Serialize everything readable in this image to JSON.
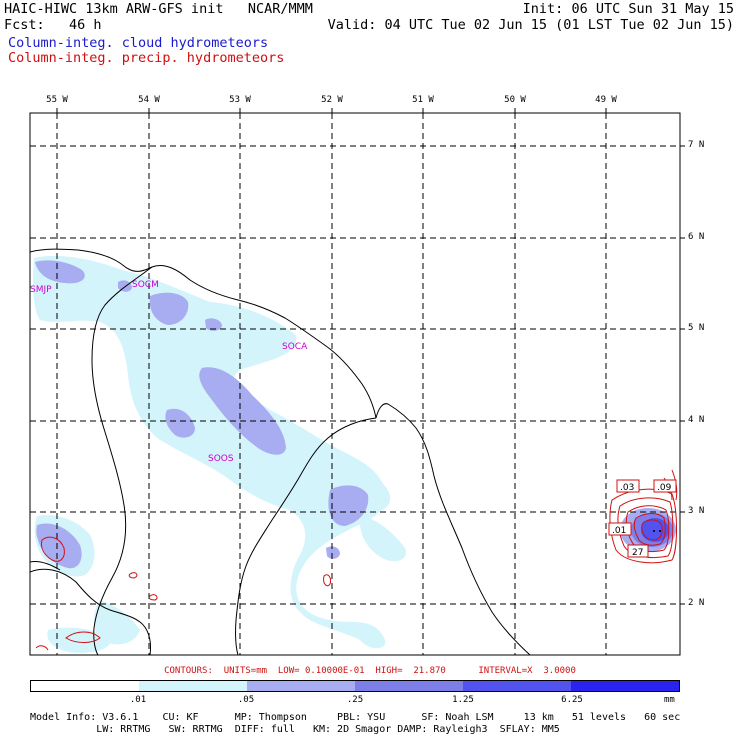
{
  "header": {
    "line1_left": "HAIC-HIWC 13km ARW-GFS init   NCAR/MMM",
    "line1_right": "Init: 06 UTC Sun 31 May 15",
    "line2_left": "Fcst:   46 h",
    "line2_right": "Valid: 04 UTC Tue 02 Jun 15 (01 LST Tue 02 Jun 15)",
    "line3": "Column-integ. cloud hydrometeors",
    "line4": "Column-integ. precip. hydrometeors"
  },
  "longitudes": [
    "55 W",
    "54 W",
    "53 W",
    "52 W",
    "51 W",
    "50 W",
    "49 W"
  ],
  "latitudes": [
    "7 N",
    "6 N",
    "5 N",
    "4 N",
    "3 N",
    "2 N"
  ],
  "stations": [
    "SMJP",
    "SOCM",
    "SOCA",
    "SOOS"
  ],
  "contour_labels": [
    ".03",
    ".09",
    ".01",
    "27"
  ],
  "contours_line": "CONTOURS:  UNITS=mm  LOW= 0.10000E-01  HIGH=  21.870      INTERVAL=X  3.0000",
  "colorbar": {
    "labels": [
      ".01",
      ".05",
      ".25",
      "1.25",
      "6.25"
    ],
    "unit": "mm",
    "colors": [
      "#ffffff",
      "#d4f4fb",
      "#a8acf0",
      "#7e7ee8",
      "#5252ee",
      "#2a22ee"
    ]
  },
  "model_info": {
    "line1": "Model Info: V3.6.1    CU: KF      MP: Thompson     PBL: YSU      SF: Noah LSM     13 km   51 levels   60 sec",
    "line2": "           LW: RRTMG   SW: RRTMG  DIFF: full   KM: 2D Smagor DAMP: Rayleigh3  SFLAY: MM5"
  },
  "colors": {
    "cloud_light": "#d4f4fb",
    "cloud_mid": "#a8acf0",
    "cloud_dark": "#7e7ee8",
    "cloud_peak": "#5252ee",
    "precip_contour": "#d01010",
    "station": "#cc00cc"
  }
}
